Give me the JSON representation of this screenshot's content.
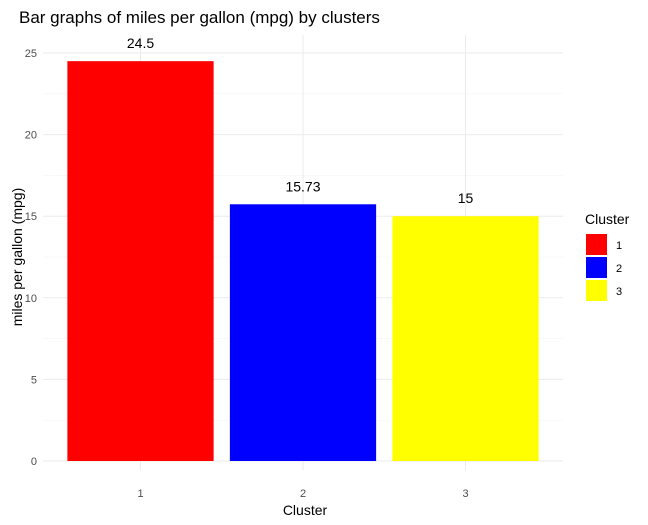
{
  "chart_data": {
    "type": "bar",
    "title": "Bar graphs of miles per gallon (mpg) by clusters",
    "xlabel": "Cluster",
    "ylabel": "miles per gallon (mpg)",
    "categories": [
      "1",
      "2",
      "3"
    ],
    "values": [
      24.5,
      15.73,
      15
    ],
    "value_labels": [
      "24.5",
      "15.73",
      "15"
    ],
    "colors": [
      "#ff0000",
      "#0000ff",
      "#ffff00"
    ],
    "ylim": [
      0,
      26
    ],
    "yticks": [
      0,
      5,
      10,
      15,
      20,
      25
    ],
    "grid": true,
    "legend": {
      "title": "Cluster",
      "placement": "right",
      "entries": [
        "1",
        "2",
        "3"
      ]
    }
  }
}
